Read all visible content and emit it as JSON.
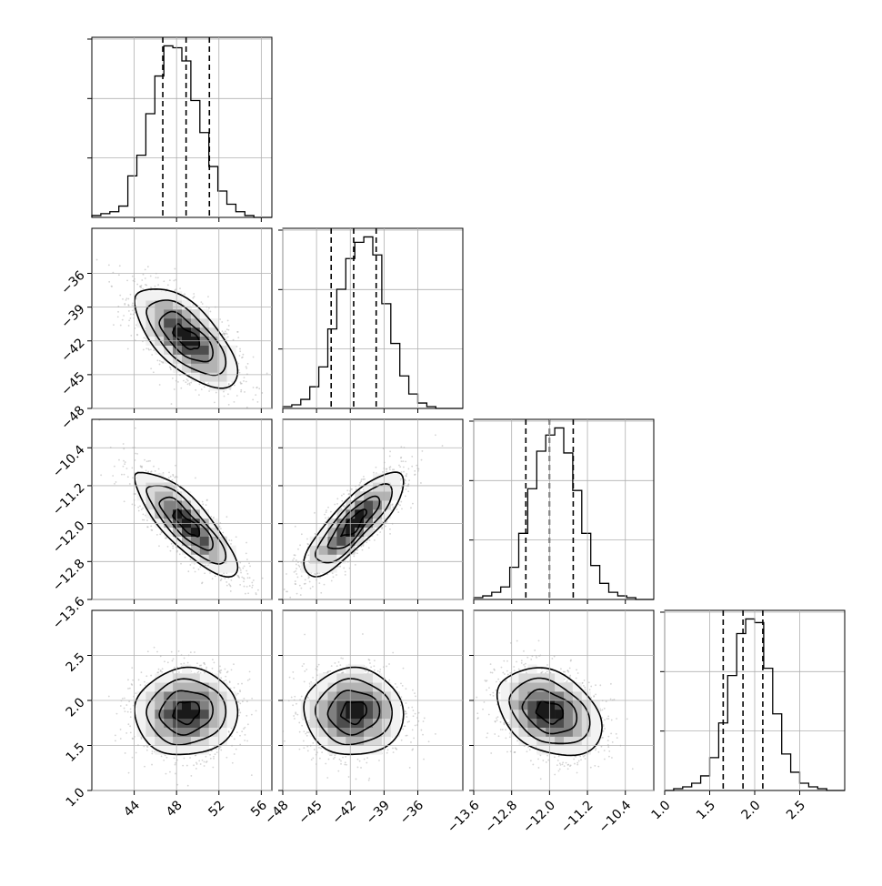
{
  "chart_data": {
    "type": "corner",
    "title": "",
    "grid": true,
    "parameters": [
      {
        "axis_range": [
          40,
          57
        ],
        "ticks": [
          44,
          48,
          52,
          56
        ],
        "tick_labels": [
          "44",
          "48",
          "52",
          "56"
        ],
        "mean": 48.9,
        "sigma": 2.2,
        "quantiles": [
          46.7,
          48.9,
          51.1
        ]
      },
      {
        "axis_range": [
          -48,
          -32
        ],
        "ticks": [
          -48,
          -45,
          -42,
          -39,
          -36
        ],
        "tick_labels": [
          "−48",
          "−45",
          "−42",
          "−39",
          "−36"
        ],
        "mean": -41.7,
        "sigma": 2.0,
        "quantiles": [
          -43.7,
          -41.7,
          -39.7
        ]
      },
      {
        "axis_range": [
          -13.6,
          -9.8
        ],
        "ticks": [
          -13.6,
          -12.8,
          -12.0,
          -11.2,
          -10.4
        ],
        "tick_labels": [
          "−13.6",
          "−12.8",
          "−12.0",
          "−11.2",
          "−10.4"
        ],
        "mean": -12.0,
        "sigma": 0.5,
        "quantiles": [
          -12.5,
          -12.0,
          -11.5
        ]
      },
      {
        "axis_range": [
          1.0,
          3.0
        ],
        "ticks": [
          1.0,
          1.5,
          2.0,
          2.5
        ],
        "tick_labels": [
          "1.0",
          "1.5",
          "2.0",
          "2.5"
        ],
        "mean": 1.87,
        "sigma": 0.22,
        "quantiles": [
          1.65,
          1.87,
          2.09
        ]
      }
    ],
    "correlations": [
      {
        "x": 0,
        "y": 1,
        "r": -0.65
      },
      {
        "x": 0,
        "y": 2,
        "r": -0.82
      },
      {
        "x": 1,
        "y": 2,
        "r": 0.82
      },
      {
        "x": 0,
        "y": 3,
        "r": 0.05
      },
      {
        "x": 1,
        "y": 3,
        "r": 0.0
      },
      {
        "x": 2,
        "y": 3,
        "r": -0.3
      }
    ],
    "histogram_bins": 20,
    "histograms": [
      {
        "param": 0,
        "counts": [
          1,
          2,
          3,
          6,
          22,
          33,
          55,
          75,
          91,
          90,
          83,
          62,
          45,
          27,
          14,
          7,
          3,
          1,
          0,
          0
        ]
      },
      {
        "param": 1,
        "counts": [
          1,
          2,
          5,
          12,
          23,
          44,
          66,
          83,
          92,
          95,
          85,
          58,
          36,
          18,
          8,
          3,
          1,
          0,
          0,
          0
        ]
      },
      {
        "param": 2,
        "counts": [
          1,
          2,
          4,
          7,
          18,
          37,
          62,
          83,
          92,
          96,
          82,
          61,
          37,
          19,
          9,
          4,
          2,
          1,
          0,
          0
        ]
      },
      {
        "param": 3,
        "counts": [
          0,
          1,
          2,
          4,
          8,
          18,
          37,
          63,
          86,
          94,
          92,
          67,
          42,
          20,
          10,
          4,
          2,
          1,
          0,
          0
        ]
      }
    ],
    "contour_levels_sigma": [
      0.5,
      1.0,
      1.5,
      2.0
    ]
  }
}
